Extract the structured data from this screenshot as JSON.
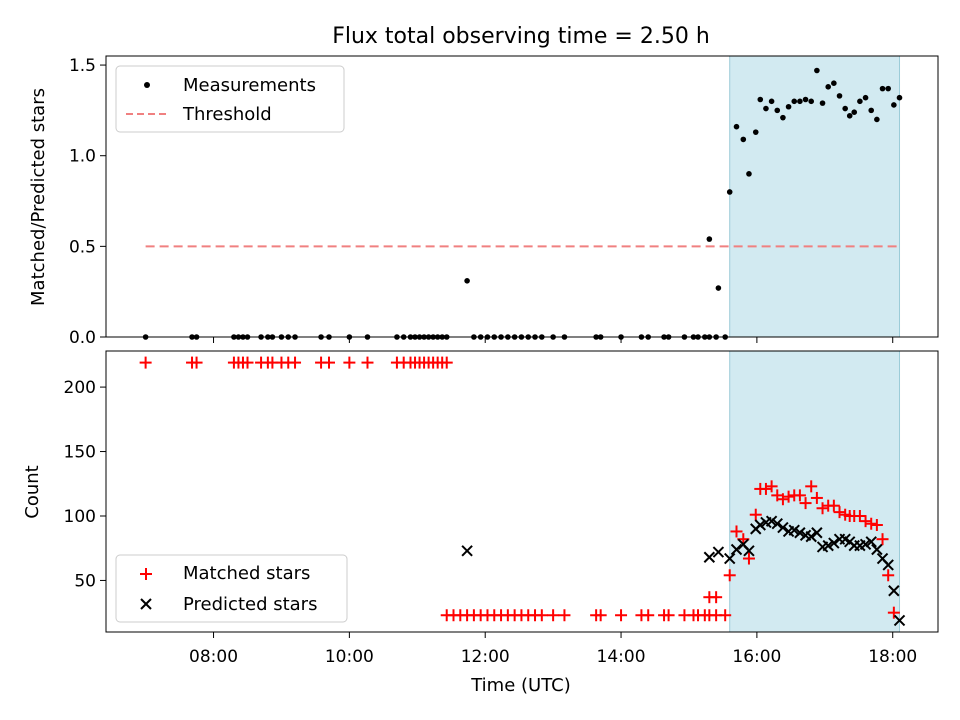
{
  "chart_data": [
    {
      "type": "scatter",
      "title": "Flux total observing time = 2.50 h",
      "xlabel": "",
      "ylabel": "Matched/Predicted stars",
      "xlim": [
        "06:25",
        "18:40"
      ],
      "ylim": [
        0,
        1.55
      ],
      "y_ticks": [
        0.0,
        0.5,
        1.0,
        1.5
      ],
      "y_tick_labels": [
        "0.0",
        "0.5",
        "1.0",
        "1.5"
      ],
      "legend_position": "top-left",
      "shaded_region": {
        "x_start": "15:36",
        "x_end": "18:06",
        "color": "#add8e6"
      },
      "series": [
        {
          "name": "Measurements",
          "marker": "dot",
          "color": "#000000",
          "points": [
            [
              "07:00",
              0
            ],
            [
              "07:41",
              0
            ],
            [
              "07:45",
              0
            ],
            [
              "08:18",
              0
            ],
            [
              "08:22",
              0
            ],
            [
              "08:26",
              0
            ],
            [
              "08:30",
              0
            ],
            [
              "08:42",
              0
            ],
            [
              "08:48",
              0
            ],
            [
              "08:52",
              0
            ],
            [
              "09:00",
              0
            ],
            [
              "09:06",
              0
            ],
            [
              "09:12",
              0
            ],
            [
              "09:35",
              0
            ],
            [
              "09:42",
              0
            ],
            [
              "10:00",
              0
            ],
            [
              "10:16",
              0
            ],
            [
              "10:42",
              0
            ],
            [
              "10:48",
              0
            ],
            [
              "10:54",
              0
            ],
            [
              "10:58",
              0
            ],
            [
              "11:02",
              0
            ],
            [
              "11:06",
              0
            ],
            [
              "11:10",
              0
            ],
            [
              "11:14",
              0
            ],
            [
              "11:18",
              0
            ],
            [
              "11:22",
              0
            ],
            [
              "11:26",
              0
            ],
            [
              "11:44",
              0.31
            ],
            [
              "11:50",
              0
            ],
            [
              "11:56",
              0
            ],
            [
              "12:02",
              0
            ],
            [
              "12:08",
              0
            ],
            [
              "12:14",
              0
            ],
            [
              "12:20",
              0
            ],
            [
              "12:26",
              0
            ],
            [
              "12:32",
              0
            ],
            [
              "12:38",
              0
            ],
            [
              "12:44",
              0
            ],
            [
              "12:50",
              0
            ],
            [
              "13:00",
              0
            ],
            [
              "13:10",
              0
            ],
            [
              "13:38",
              0
            ],
            [
              "13:42",
              0
            ],
            [
              "14:00",
              0
            ],
            [
              "14:18",
              0
            ],
            [
              "14:24",
              0
            ],
            [
              "14:38",
              0
            ],
            [
              "14:42",
              0
            ],
            [
              "14:56",
              0
            ],
            [
              "15:04",
              0
            ],
            [
              "15:08",
              0
            ],
            [
              "15:14",
              0
            ],
            [
              "15:18",
              0
            ],
            [
              "15:24",
              0
            ],
            [
              "15:32",
              0
            ],
            [
              "15:18",
              0.54
            ],
            [
              "15:26",
              0.27
            ],
            [
              "15:36",
              0.8
            ],
            [
              "15:42",
              1.16
            ],
            [
              "15:48",
              1.09
            ],
            [
              "15:53",
              0.9
            ],
            [
              "15:59",
              1.13
            ],
            [
              "16:03",
              1.31
            ],
            [
              "16:08",
              1.26
            ],
            [
              "16:13",
              1.3
            ],
            [
              "16:18",
              1.25
            ],
            [
              "16:23",
              1.21
            ],
            [
              "16:28",
              1.27
            ],
            [
              "16:33",
              1.3
            ],
            [
              "16:38",
              1.3
            ],
            [
              "16:43",
              1.31
            ],
            [
              "16:48",
              1.3
            ],
            [
              "16:53",
              1.47
            ],
            [
              "16:58",
              1.29
            ],
            [
              "17:03",
              1.38
            ],
            [
              "17:08",
              1.4
            ],
            [
              "17:13",
              1.33
            ],
            [
              "17:18",
              1.26
            ],
            [
              "17:22",
              1.22
            ],
            [
              "17:26",
              1.24
            ],
            [
              "17:31",
              1.3
            ],
            [
              "17:36",
              1.32
            ],
            [
              "17:41",
              1.25
            ],
            [
              "17:46",
              1.2
            ],
            [
              "17:51",
              1.37
            ],
            [
              "17:56",
              1.37
            ],
            [
              "18:01",
              1.28
            ],
            [
              "18:06",
              1.32
            ]
          ]
        },
        {
          "name": "Threshold",
          "marker": "dashed-line",
          "color": "#f08080",
          "points": [
            [
              "07:00",
              0.5
            ],
            [
              "18:06",
              0.5
            ]
          ]
        }
      ]
    },
    {
      "type": "scatter",
      "title": "",
      "xlabel": "Time (UTC)",
      "ylabel": "Count",
      "xlim": [
        "06:25",
        "18:40"
      ],
      "ylim": [
        10,
        228
      ],
      "y_ticks": [
        50,
        100,
        150,
        200
      ],
      "y_tick_labels": [
        "50",
        "100",
        "150",
        "200"
      ],
      "x_ticks": [
        "08:00",
        "10:00",
        "12:00",
        "14:00",
        "16:00",
        "18:00"
      ],
      "legend_position": "lower-left",
      "shaded_region": {
        "x_start": "15:36",
        "x_end": "18:06",
        "color": "#add8e6"
      },
      "series": [
        {
          "name": "Matched stars",
          "marker": "plus",
          "color": "#ff0000",
          "points": [
            [
              "07:00",
              219
            ],
            [
              "07:41",
              219
            ],
            [
              "07:45",
              219
            ],
            [
              "08:18",
              219
            ],
            [
              "08:22",
              219
            ],
            [
              "08:26",
              219
            ],
            [
              "08:30",
              219
            ],
            [
              "08:42",
              219
            ],
            [
              "08:48",
              219
            ],
            [
              "08:52",
              219
            ],
            [
              "09:00",
              219
            ],
            [
              "09:06",
              219
            ],
            [
              "09:12",
              219
            ],
            [
              "09:35",
              219
            ],
            [
              "09:42",
              219
            ],
            [
              "10:00",
              219
            ],
            [
              "10:16",
              219
            ],
            [
              "10:42",
              219
            ],
            [
              "10:48",
              219
            ],
            [
              "10:54",
              219
            ],
            [
              "10:58",
              219
            ],
            [
              "11:02",
              219
            ],
            [
              "11:06",
              219
            ],
            [
              "11:10",
              219
            ],
            [
              "11:14",
              219
            ],
            [
              "11:18",
              219
            ],
            [
              "11:22",
              219
            ],
            [
              "11:26",
              219
            ],
            [
              "11:26",
              23
            ],
            [
              "11:32",
              23
            ],
            [
              "11:38",
              23
            ],
            [
              "11:44",
              23
            ],
            [
              "11:50",
              23
            ],
            [
              "11:56",
              23
            ],
            [
              "12:02",
              23
            ],
            [
              "12:08",
              23
            ],
            [
              "12:14",
              23
            ],
            [
              "12:20",
              23
            ],
            [
              "12:26",
              23
            ],
            [
              "12:32",
              23
            ],
            [
              "12:38",
              23
            ],
            [
              "12:44",
              23
            ],
            [
              "12:50",
              23
            ],
            [
              "13:00",
              23
            ],
            [
              "13:10",
              23
            ],
            [
              "13:38",
              23
            ],
            [
              "13:42",
              23
            ],
            [
              "14:00",
              23
            ],
            [
              "14:18",
              23
            ],
            [
              "14:24",
              23
            ],
            [
              "14:38",
              23
            ],
            [
              "14:42",
              23
            ],
            [
              "14:56",
              23
            ],
            [
              "15:04",
              23
            ],
            [
              "15:08",
              23
            ],
            [
              "15:14",
              23
            ],
            [
              "15:18",
              23
            ],
            [
              "15:24",
              23
            ],
            [
              "15:32",
              23
            ],
            [
              "15:18",
              37
            ],
            [
              "15:24",
              37
            ],
            [
              "15:36",
              54
            ],
            [
              "15:42",
              88
            ],
            [
              "15:48",
              82
            ],
            [
              "15:53",
              67
            ],
            [
              "15:59",
              101
            ],
            [
              "16:03",
              121
            ],
            [
              "16:08",
              121
            ],
            [
              "16:13",
              123
            ],
            [
              "16:18",
              116
            ],
            [
              "16:23",
              113
            ],
            [
              "16:28",
              115
            ],
            [
              "16:33",
              116
            ],
            [
              "16:38",
              116
            ],
            [
              "16:43",
              110
            ],
            [
              "16:48",
              123
            ],
            [
              "16:53",
              114
            ],
            [
              "16:58",
              106
            ],
            [
              "17:03",
              108
            ],
            [
              "17:08",
              108
            ],
            [
              "17:13",
              103
            ],
            [
              "17:18",
              101
            ],
            [
              "17:22",
              100
            ],
            [
              "17:26",
              100
            ],
            [
              "17:31",
              100
            ],
            [
              "17:36",
              96
            ],
            [
              "17:41",
              94
            ],
            [
              "17:46",
              93
            ],
            [
              "17:51",
              82
            ],
            [
              "17:56",
              54
            ],
            [
              "18:01",
              25
            ]
          ]
        },
        {
          "name": "Predicted stars",
          "marker": "x",
          "color": "#000000",
          "points": [
            [
              "11:44",
              73
            ],
            [
              "15:18",
              68
            ],
            [
              "15:26",
              72
            ],
            [
              "15:36",
              67
            ],
            [
              "15:42",
              74
            ],
            [
              "15:48",
              78
            ],
            [
              "15:53",
              73
            ],
            [
              "15:59",
              90
            ],
            [
              "16:03",
              93
            ],
            [
              "16:08",
              95
            ],
            [
              "16:13",
              96
            ],
            [
              "16:18",
              94
            ],
            [
              "16:23",
              91
            ],
            [
              "16:28",
              88
            ],
            [
              "16:33",
              89
            ],
            [
              "16:38",
              87
            ],
            [
              "16:43",
              85
            ],
            [
              "16:48",
              84
            ],
            [
              "16:53",
              87
            ],
            [
              "16:58",
              76
            ],
            [
              "17:03",
              77
            ],
            [
              "17:08",
              79
            ],
            [
              "17:13",
              82
            ],
            [
              "17:18",
              82
            ],
            [
              "17:22",
              80
            ],
            [
              "17:26",
              77
            ],
            [
              "17:31",
              77
            ],
            [
              "17:36",
              78
            ],
            [
              "17:41",
              80
            ],
            [
              "17:46",
              74
            ],
            [
              "17:51",
              67
            ],
            [
              "17:56",
              62
            ],
            [
              "18:01",
              42
            ],
            [
              "18:06",
              19
            ]
          ]
        }
      ]
    }
  ]
}
